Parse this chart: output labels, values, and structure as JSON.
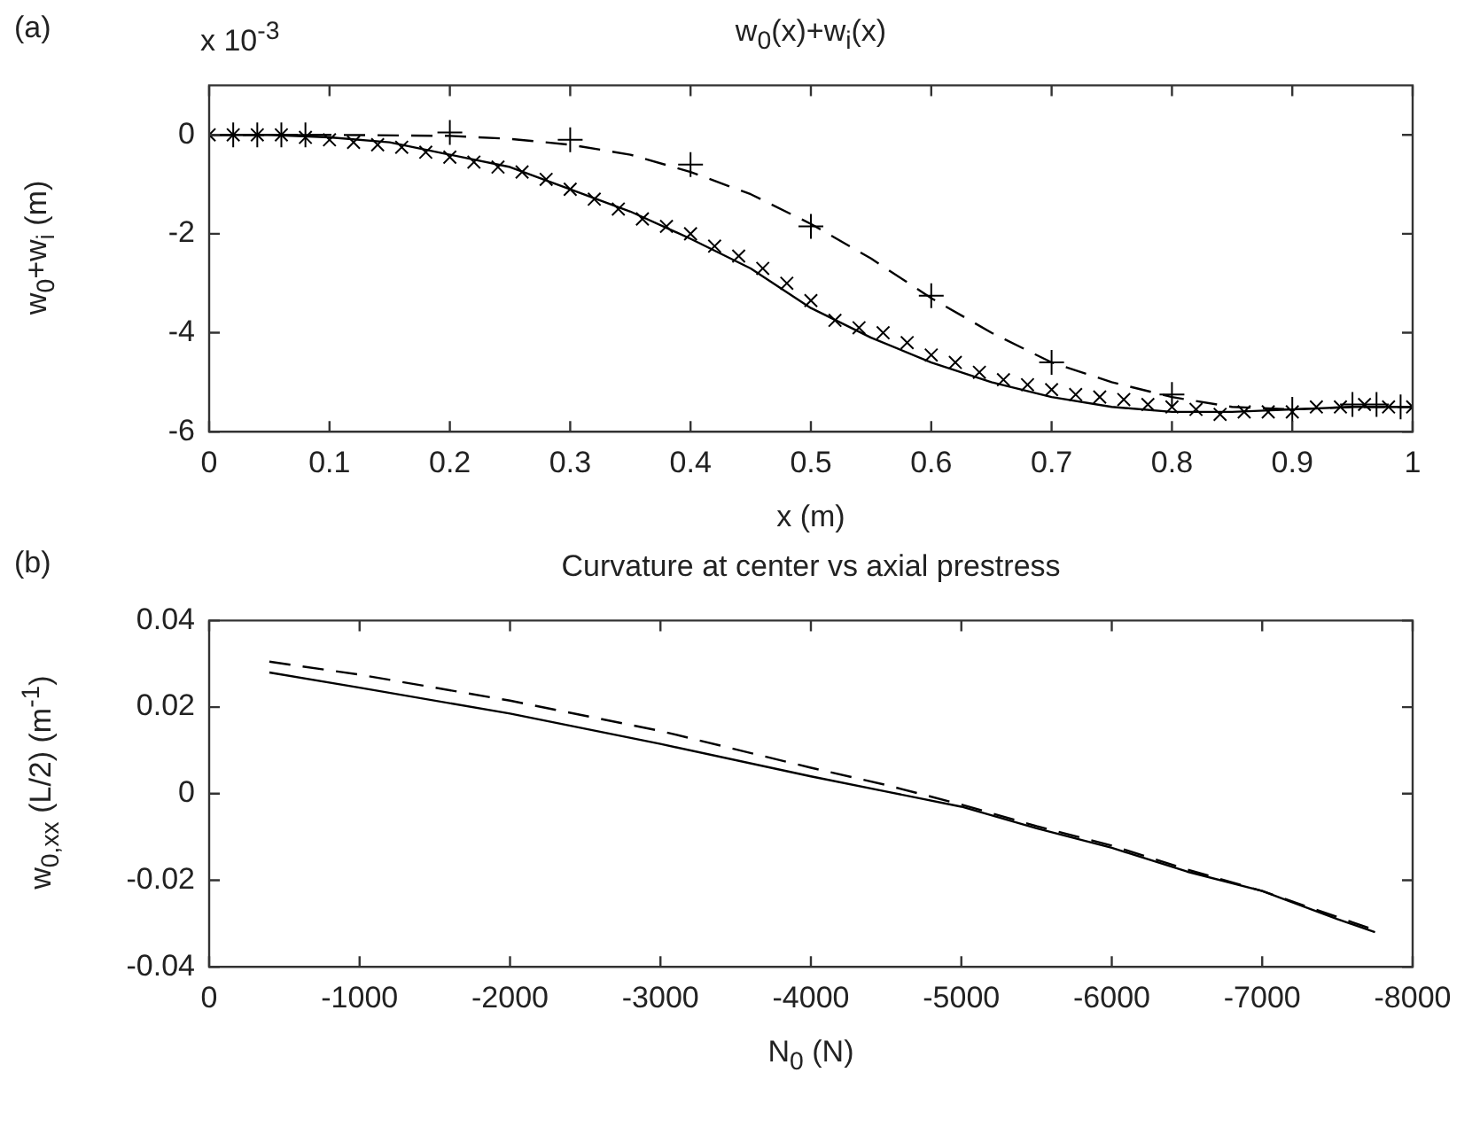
{
  "chart_data": [
    {
      "type": "line",
      "title": "w$_{0}$(x)+w$_{i}$(x)",
      "xlabel": "x (m)",
      "ylabel": "w$_{0}$+w$_{i}$ (m)",
      "annotations": [
        "(a)",
        "x 10$^{-3}$"
      ],
      "xlim": [
        0,
        1
      ],
      "ylim": [
        -6,
        1
      ],
      "xticks": [
        0,
        0.1,
        0.2,
        0.3,
        0.4,
        0.5,
        0.6,
        0.7,
        0.8,
        0.9,
        1
      ],
      "yticks": [
        -6,
        -4,
        -2,
        0
      ],
      "series": [
        {
          "type": "line",
          "color": "#000000",
          "line_style": "solid",
          "marker": "none",
          "x": [
            0,
            0.05,
            0.1,
            0.15,
            0.2,
            0.25,
            0.3,
            0.35,
            0.4,
            0.45,
            0.5,
            0.55,
            0.6,
            0.65,
            0.7,
            0.75,
            0.8,
            0.85,
            0.9,
            0.95,
            1
          ],
          "values": [
            0,
            0,
            -0.05,
            -0.15,
            -0.4,
            -0.65,
            -1.1,
            -1.55,
            -2.1,
            -2.7,
            -3.5,
            -4.1,
            -4.6,
            -5.0,
            -5.3,
            -5.5,
            -5.6,
            -5.6,
            -5.55,
            -5.5,
            -5.5
          ]
        },
        {
          "type": "scatter",
          "color": "#000000",
          "marker": "cross",
          "x": [
            0,
            0.02,
            0.04,
            0.06,
            0.08,
            0.1,
            0.12,
            0.14,
            0.16,
            0.18,
            0.2,
            0.22,
            0.24,
            0.26,
            0.28,
            0.3,
            0.32,
            0.34,
            0.36,
            0.38,
            0.4,
            0.42,
            0.44,
            0.46,
            0.48,
            0.5,
            0.52,
            0.54,
            0.56,
            0.58,
            0.6,
            0.62,
            0.64,
            0.66,
            0.68,
            0.7,
            0.72,
            0.74,
            0.76,
            0.78,
            0.8,
            0.82,
            0.84,
            0.86,
            0.88,
            0.9,
            0.92,
            0.94,
            0.96,
            0.98,
            1
          ],
          "values": [
            0,
            0,
            0,
            0,
            -0.05,
            -0.1,
            -0.15,
            -0.2,
            -0.25,
            -0.35,
            -0.45,
            -0.55,
            -0.65,
            -0.75,
            -0.9,
            -1.1,
            -1.3,
            -1.5,
            -1.7,
            -1.85,
            -2.0,
            -2.25,
            -2.45,
            -2.7,
            -3.0,
            -3.35,
            -3.75,
            -3.9,
            -4.0,
            -4.2,
            -4.45,
            -4.6,
            -4.8,
            -4.95,
            -5.05,
            -5.15,
            -5.25,
            -5.3,
            -5.35,
            -5.45,
            -5.5,
            -5.55,
            -5.65,
            -5.6,
            -5.6,
            -5.6,
            -5.5,
            -5.5,
            -5.45,
            -5.5,
            -5.5
          ]
        },
        {
          "type": "line",
          "color": "#000000",
          "line_style": "dashed",
          "marker": "none",
          "x": [
            0,
            0.1,
            0.2,
            0.25,
            0.3,
            0.35,
            0.4,
            0.45,
            0.5,
            0.55,
            0.6,
            0.65,
            0.7,
            0.75,
            0.8,
            0.85,
            0.9,
            0.95,
            1
          ],
          "values": [
            0,
            0,
            -0.02,
            -0.08,
            -0.2,
            -0.4,
            -0.75,
            -1.2,
            -1.8,
            -2.5,
            -3.3,
            -4.0,
            -4.6,
            -5.0,
            -5.3,
            -5.5,
            -5.55,
            -5.5,
            -5.5
          ]
        },
        {
          "type": "scatter",
          "color": "#000000",
          "marker": "plus",
          "x": [
            0,
            0.02,
            0.04,
            0.06,
            0.08,
            0.2,
            0.3,
            0.4,
            0.5,
            0.6,
            0.7,
            0.8,
            0.9,
            0.95,
            0.97,
            0.99
          ],
          "values": [
            0,
            0,
            0,
            0,
            0,
            0.05,
            -0.1,
            -0.6,
            -1.85,
            -3.25,
            -4.6,
            -5.25,
            -5.55,
            -5.45,
            -5.45,
            -5.5
          ]
        }
      ]
    },
    {
      "type": "line",
      "title": "Curvature at center vs axial prestress",
      "xlabel": "N$_{0}$ (N)",
      "ylabel": "w$_{0,xx}$ (L/2) (m$^{-1}$)",
      "annotations": [
        "(b)"
      ],
      "xlim": [
        0,
        -8000
      ],
      "ylim": [
        -0.04,
        0.04
      ],
      "xticks": [
        0,
        -1000,
        -2000,
        -3000,
        -4000,
        -5000,
        -6000,
        -7000,
        -8000
      ],
      "yticks": [
        -0.04,
        -0.02,
        0,
        0.02,
        0.04
      ],
      "series": [
        {
          "type": "line",
          "color": "#000000",
          "line_style": "solid",
          "marker": "none",
          "x": [
            -400,
            -1000,
            -2000,
            -3000,
            -4000,
            -4500,
            -5000,
            -5500,
            -6000,
            -6500,
            -7000,
            -7500,
            -7750
          ],
          "values": [
            0.028,
            0.0245,
            0.0185,
            0.0115,
            0.004,
            0.0005,
            -0.003,
            -0.008,
            -0.0125,
            -0.018,
            -0.0225,
            -0.029,
            -0.032
          ]
        },
        {
          "type": "line",
          "color": "#000000",
          "line_style": "dashed",
          "marker": "none",
          "x": [
            -400,
            -1000,
            -2000,
            -3000,
            -4000,
            -4500,
            -5000,
            -5500,
            -6000,
            -6500,
            -7000,
            -7500,
            -7750
          ],
          "values": [
            0.0305,
            0.0275,
            0.0215,
            0.0145,
            0.006,
            0.002,
            -0.0025,
            -0.0075,
            -0.012,
            -0.0175,
            -0.0225,
            -0.0285,
            -0.0315
          ]
        }
      ]
    }
  ]
}
